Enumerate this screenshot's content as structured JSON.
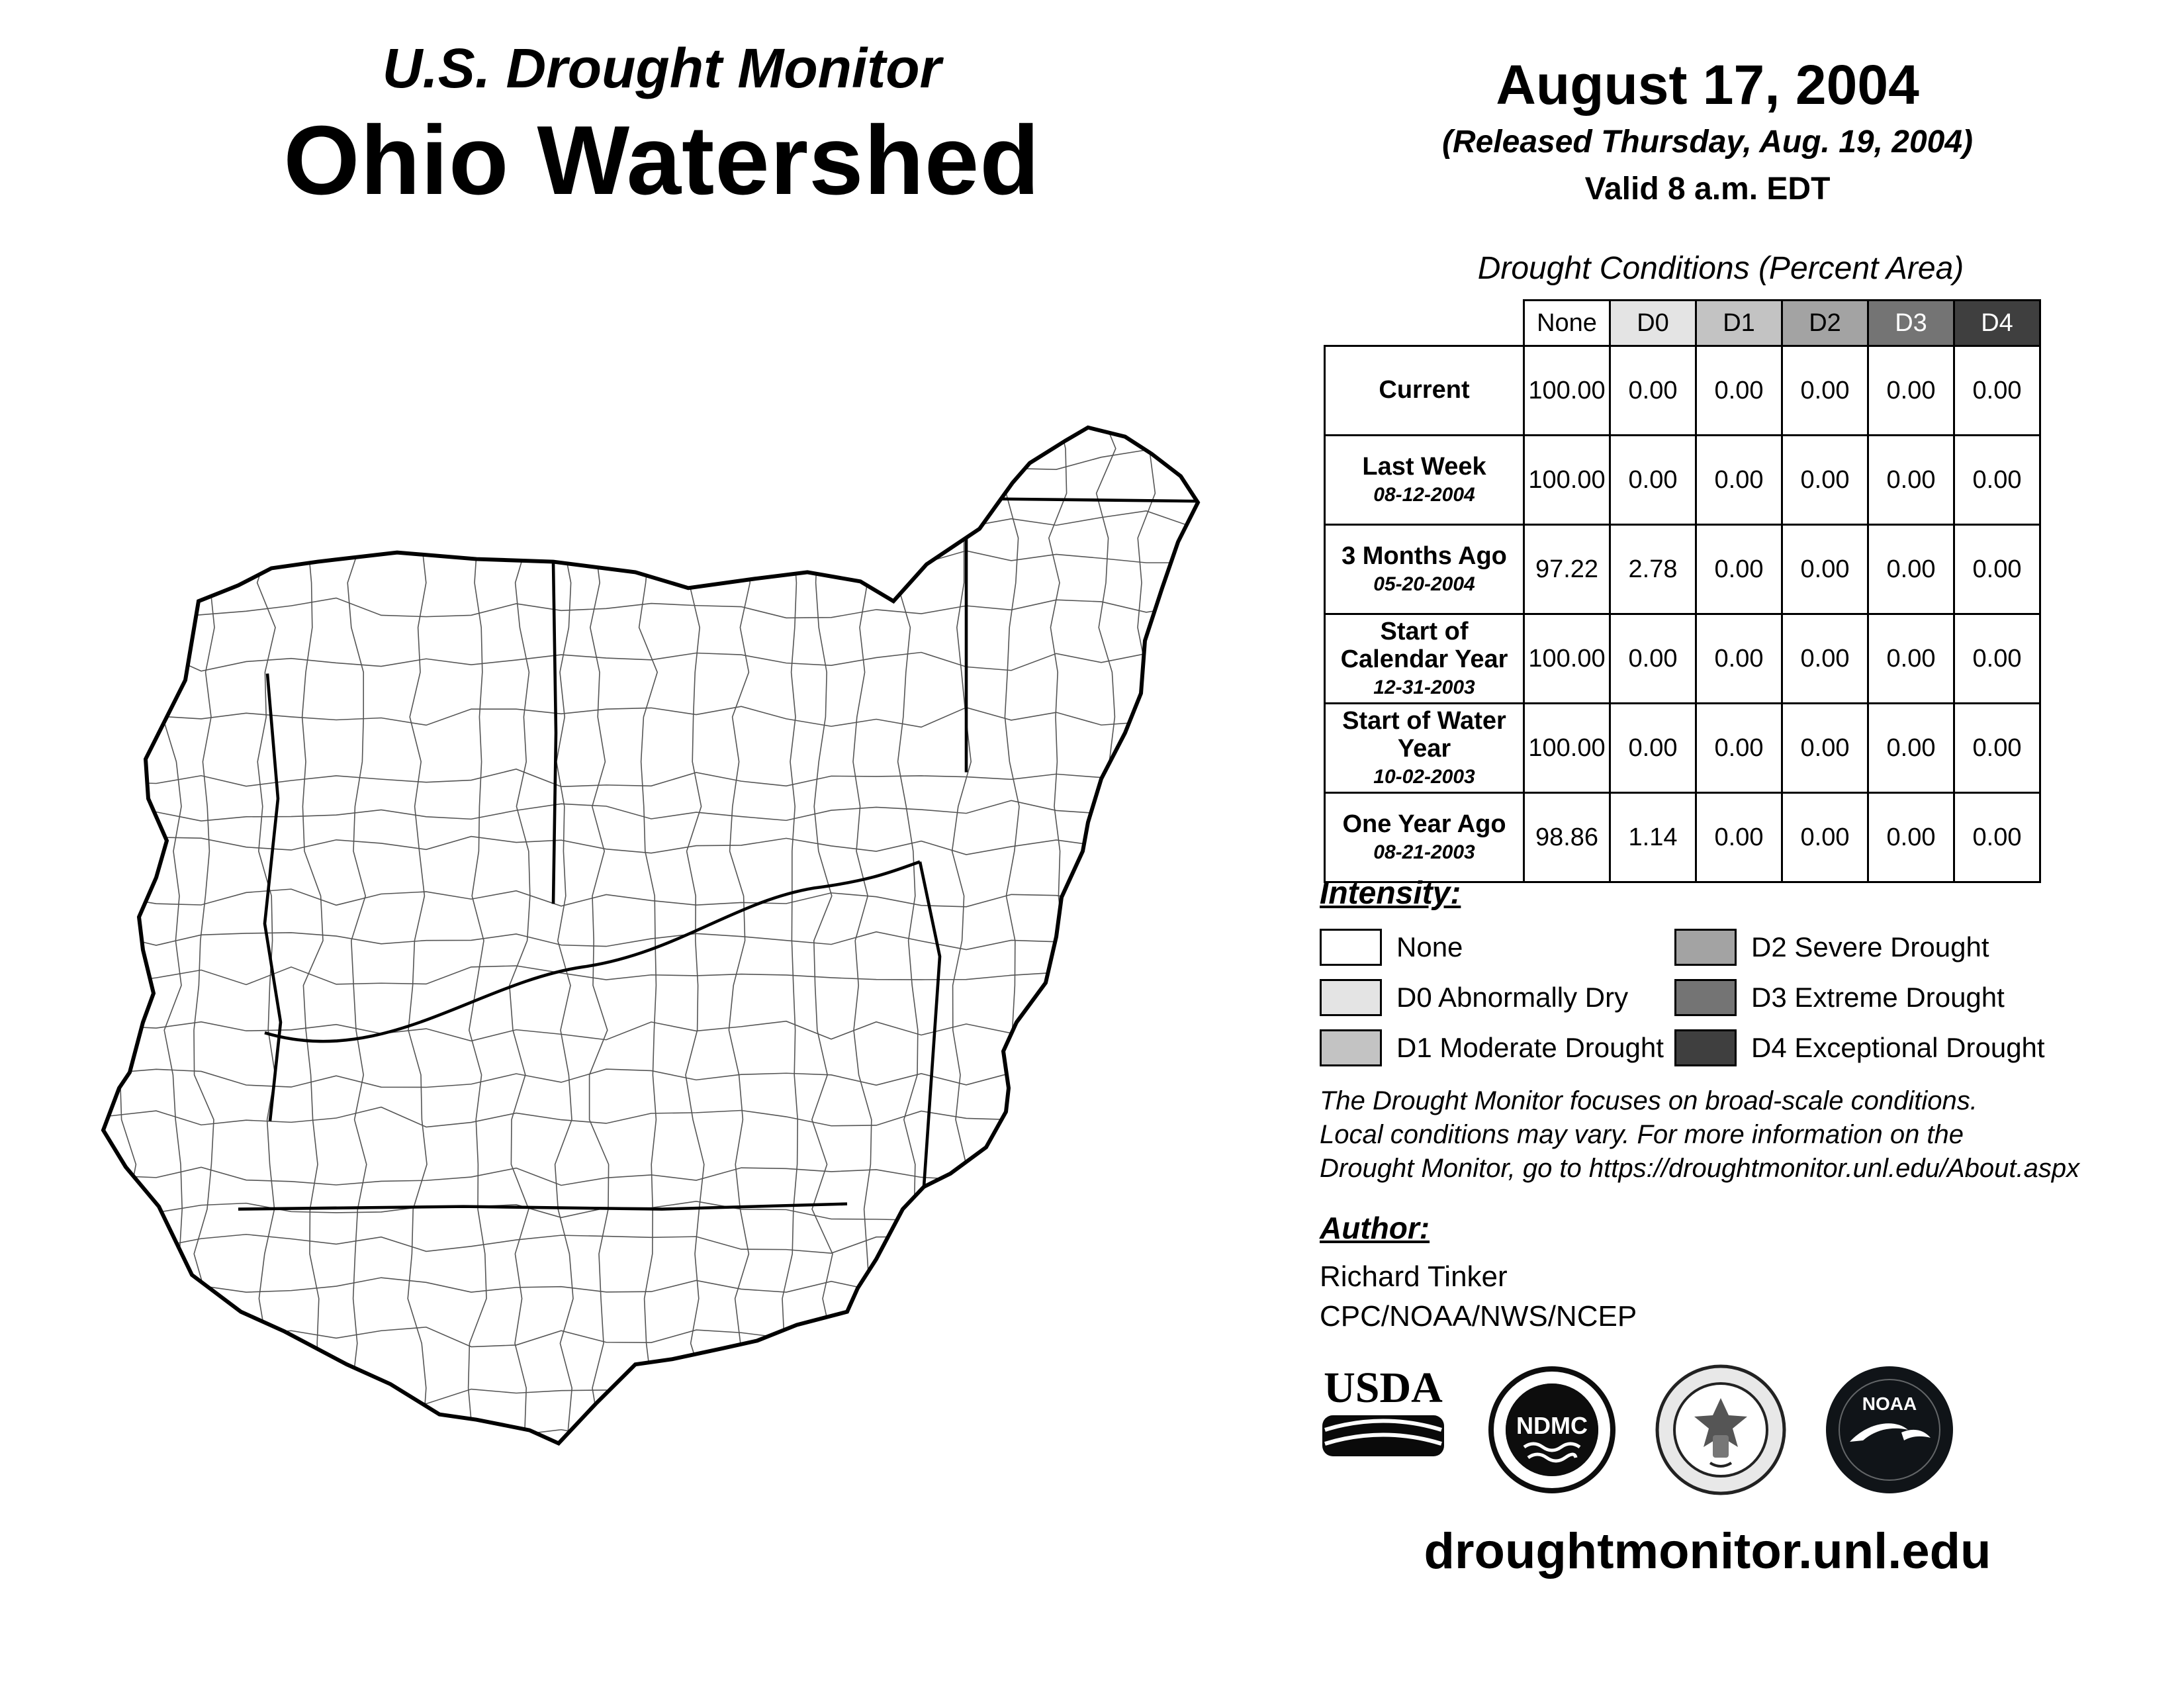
{
  "title": {
    "line1": "U.S. Drought Monitor",
    "line2": "Ohio Watershed"
  },
  "header": {
    "date": "August 17, 2004",
    "released": "(Released Thursday, Aug. 19, 2004)",
    "valid": "Valid 8 a.m. EDT"
  },
  "table": {
    "caption": "Drought Conditions (Percent Area)",
    "columns": [
      "None",
      "D0",
      "D1",
      "D2",
      "D3",
      "D4"
    ],
    "rows": [
      {
        "label": "Current",
        "sublabel": "",
        "values": [
          "100.00",
          "0.00",
          "0.00",
          "0.00",
          "0.00",
          "0.00"
        ]
      },
      {
        "label": "Last Week",
        "sublabel": "08-12-2004",
        "values": [
          "100.00",
          "0.00",
          "0.00",
          "0.00",
          "0.00",
          "0.00"
        ]
      },
      {
        "label": "3 Months Ago",
        "sublabel": "05-20-2004",
        "values": [
          "97.22",
          "2.78",
          "0.00",
          "0.00",
          "0.00",
          "0.00"
        ]
      },
      {
        "label": "Start of Calendar Year",
        "sublabel": "12-31-2003",
        "values": [
          "100.00",
          "0.00",
          "0.00",
          "0.00",
          "0.00",
          "0.00"
        ]
      },
      {
        "label": "Start of Water Year",
        "sublabel": "10-02-2003",
        "values": [
          "100.00",
          "0.00",
          "0.00",
          "0.00",
          "0.00",
          "0.00"
        ]
      },
      {
        "label": "One Year Ago",
        "sublabel": "08-21-2003",
        "values": [
          "98.86",
          "1.14",
          "0.00",
          "0.00",
          "0.00",
          "0.00"
        ]
      }
    ]
  },
  "legend": {
    "heading": "Intensity:",
    "items": [
      {
        "label": "None",
        "color": "#ffffff"
      },
      {
        "label": "D0 Abnormally Dry",
        "color": "#e4e4e4"
      },
      {
        "label": "D1 Moderate Drought",
        "color": "#c3c3c3"
      },
      {
        "label": "D2 Severe Drought",
        "color": "#a3a3a3"
      },
      {
        "label": "D3 Extreme Drought",
        "color": "#747474"
      },
      {
        "label": "D4 Exceptional Drought",
        "color": "#3f3f3f"
      }
    ]
  },
  "disclaimer": {
    "line1": "The Drought Monitor focuses on broad-scale conditions.",
    "line2": "Local conditions may vary. For more information on the",
    "line3": "Drought Monitor, go to https://droughtmonitor.unl.edu/About.aspx"
  },
  "author": {
    "heading": "Author:",
    "name": "Richard Tinker",
    "org": "CPC/NOAA/NWS/NCEP"
  },
  "logos": [
    {
      "label": "USDA"
    },
    {
      "label": "NDMC"
    },
    {
      "label": ""
    },
    {
      "label": "NOAA"
    }
  ],
  "footer": {
    "url": "droughtmonitor.unl.edu"
  }
}
